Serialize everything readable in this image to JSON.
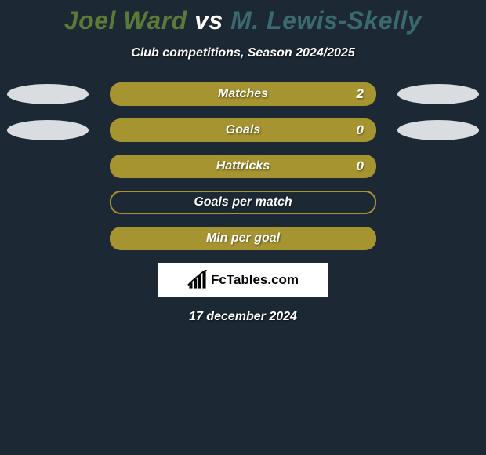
{
  "title": {
    "player1": "Joel Ward",
    "vs": "vs",
    "player2": "M. Lewis-Skelly",
    "color1": "#5b7a3a",
    "color_vs": "#ffffff",
    "color2": "#3a6a6f"
  },
  "subtitle": "Club competitions, Season 2024/2025",
  "bar_color": "#a5942f",
  "ellipse_left_color": "#d9dde0",
  "ellipse_right_color": "#d9dde0",
  "background_color": "#1c2833",
  "stats": [
    {
      "label": "Matches",
      "value": "2",
      "filled": true,
      "show_value": true,
      "left_ellipse": true,
      "right_ellipse": true
    },
    {
      "label": "Goals",
      "value": "0",
      "filled": true,
      "show_value": true,
      "left_ellipse": true,
      "right_ellipse": true
    },
    {
      "label": "Hattricks",
      "value": "0",
      "filled": true,
      "show_value": true,
      "left_ellipse": false,
      "right_ellipse": false
    },
    {
      "label": "Goals per match",
      "value": "",
      "filled": false,
      "show_value": false,
      "left_ellipse": false,
      "right_ellipse": false
    },
    {
      "label": "Min per goal",
      "value": "",
      "filled": true,
      "show_value": false,
      "left_ellipse": false,
      "right_ellipse": false
    }
  ],
  "logo_text": "FcTables.com",
  "date": "17 december 2024"
}
